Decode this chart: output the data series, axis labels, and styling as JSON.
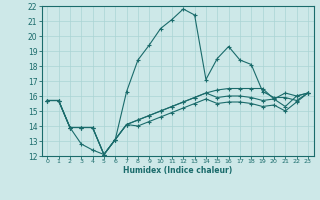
{
  "xlabel": "Humidex (Indice chaleur)",
  "ylabel": "",
  "bg_color": "#cde8e8",
  "line_color": "#1a6b6b",
  "grid_color": "#aad4d4",
  "xlim": [
    -0.5,
    23.5
  ],
  "ylim": [
    12,
    22
  ],
  "xticks": [
    0,
    1,
    2,
    3,
    4,
    5,
    6,
    7,
    8,
    9,
    10,
    11,
    12,
    13,
    14,
    15,
    16,
    17,
    18,
    19,
    20,
    21,
    22,
    23
  ],
  "yticks": [
    12,
    13,
    14,
    15,
    16,
    17,
    18,
    19,
    20,
    21,
    22
  ],
  "series": [
    [
      15.7,
      15.7,
      13.9,
      12.8,
      12.4,
      12.1,
      13.1,
      16.3,
      18.4,
      19.4,
      20.5,
      21.1,
      21.8,
      21.4,
      17.1,
      18.5,
      19.3,
      18.4,
      18.1,
      16.3,
      15.9,
      15.9,
      15.7,
      16.2
    ],
    [
      15.7,
      15.7,
      13.9,
      13.9,
      13.9,
      12.1,
      13.1,
      14.1,
      14.4,
      14.7,
      15.0,
      15.3,
      15.6,
      15.9,
      16.2,
      16.4,
      16.5,
      16.5,
      16.5,
      16.5,
      15.8,
      16.2,
      16.0,
      16.2
    ],
    [
      15.7,
      15.7,
      13.9,
      13.9,
      13.9,
      12.1,
      13.1,
      14.1,
      14.4,
      14.7,
      15.0,
      15.3,
      15.6,
      15.9,
      16.2,
      15.9,
      16.0,
      16.0,
      15.9,
      15.7,
      15.8,
      15.3,
      16.0,
      16.2
    ],
    [
      15.7,
      15.7,
      13.9,
      13.9,
      13.9,
      12.1,
      13.1,
      14.1,
      14.0,
      14.3,
      14.6,
      14.9,
      15.2,
      15.5,
      15.8,
      15.5,
      15.6,
      15.6,
      15.5,
      15.3,
      15.4,
      15.0,
      15.6,
      16.2
    ]
  ]
}
